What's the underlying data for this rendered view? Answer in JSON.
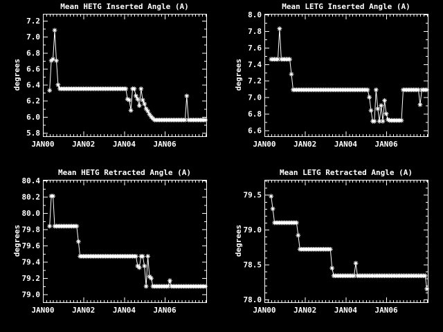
{
  "page": {
    "background": "#000000",
    "foreground": "#ffffff",
    "description_labels": {
      "x_axis_month_prefix": "JAN",
      "y_axis_label": "degrees"
    }
  },
  "chart_data": [
    {
      "type": "line",
      "title": "Mean HETG Inserted Angle (A)",
      "ylabel": "degrees",
      "marker": "asterisk",
      "line_color": "#ffffff",
      "xlim": [
        2000.0,
        2008.04
      ],
      "ylim": [
        5.757,
        7.286
      ],
      "xticks": [
        2000,
        2002,
        2004,
        2006
      ],
      "xtick_labels": [
        "JAN00",
        "JAN02",
        "JAN04",
        "JAN06"
      ],
      "xminor_step": 0.166667,
      "yticks": [
        5.8,
        6.0,
        6.2,
        6.4,
        6.6,
        6.8,
        7.0,
        7.2
      ],
      "ytick_labels": [
        "5.8",
        "6.0",
        "6.2",
        "6.4",
        "6.6",
        "6.8",
        "7.0",
        "7.2"
      ],
      "yminor_step": 0.1,
      "grid": false,
      "series": {
        "name": "mean-hetg-inserted-angle",
        "x_start": 2000.33,
        "x_step": 0.083333,
        "values": [
          6.33,
          6.7,
          6.72,
          7.08,
          6.7,
          6.4,
          6.35,
          6.35,
          6.35,
          6.35,
          6.35,
          6.35,
          6.35,
          6.35,
          6.35,
          6.35,
          6.35,
          6.35,
          6.35,
          6.35,
          6.35,
          6.35,
          6.35,
          6.35,
          6.35,
          6.35,
          6.35,
          6.35,
          6.35,
          6.35,
          6.35,
          6.35,
          6.35,
          6.35,
          6.35,
          6.35,
          6.35,
          6.35,
          6.35,
          6.35,
          6.35,
          6.35,
          6.35,
          6.35,
          6.35,
          6.35,
          6.22,
          6.21,
          6.08,
          6.35,
          6.35,
          6.26,
          6.22,
          6.14,
          6.35,
          6.21,
          6.16,
          6.1,
          6.07,
          6.03,
          6.0,
          5.98,
          5.96,
          5.96,
          5.96,
          5.96,
          5.96,
          5.96,
          5.96,
          5.96,
          5.96,
          5.96,
          5.96,
          5.96,
          5.96,
          5.96,
          5.96,
          5.96,
          5.96,
          5.96,
          5.96,
          6.26,
          5.96,
          5.96,
          5.96,
          5.96,
          5.96,
          5.96,
          5.96,
          5.96,
          5.96,
          5.96,
          5.96
        ]
      }
    },
    {
      "type": "line",
      "title": "Mean LETG Inserted Angle (A)",
      "ylabel": "degrees",
      "marker": "asterisk",
      "line_color": "#ffffff",
      "xlim": [
        2000.0,
        2008.04
      ],
      "ylim": [
        6.528,
        8.01
      ],
      "xticks": [
        2000,
        2002,
        2004,
        2006
      ],
      "xtick_labels": [
        "JAN00",
        "JAN02",
        "JAN04",
        "JAN06"
      ],
      "xminor_step": 0.166667,
      "yticks": [
        6.6,
        6.8,
        7.0,
        7.2,
        7.4,
        7.6,
        7.8,
        8.0
      ],
      "ytick_labels": [
        "6.6",
        "6.8",
        "7.0",
        "7.2",
        "7.4",
        "7.6",
        "7.8",
        "8.0"
      ],
      "yminor_step": 0.1,
      "grid": false,
      "series": {
        "name": "mean-letg-inserted-angle",
        "x_start": 2000.33,
        "x_step": 0.083333,
        "values": [
          7.46,
          7.46,
          7.46,
          7.46,
          7.46,
          7.83,
          7.46,
          7.46,
          7.46,
          7.46,
          7.46,
          7.46,
          7.28,
          7.09,
          7.09,
          7.09,
          7.09,
          7.09,
          7.09,
          7.09,
          7.09,
          7.09,
          7.09,
          7.09,
          7.09,
          7.09,
          7.09,
          7.09,
          7.09,
          7.09,
          7.09,
          7.09,
          7.09,
          7.09,
          7.09,
          7.09,
          7.09,
          7.09,
          7.09,
          7.09,
          7.09,
          7.09,
          7.09,
          7.09,
          7.09,
          7.09,
          7.09,
          7.09,
          7.09,
          7.09,
          7.09,
          7.09,
          7.09,
          7.09,
          7.09,
          7.09,
          7.09,
          7.09,
          7.0,
          6.84,
          6.71,
          6.71,
          7.09,
          6.86,
          6.71,
          6.9,
          6.71,
          6.96,
          6.8,
          6.73,
          6.72,
          6.72,
          6.72,
          6.72,
          6.72,
          6.72,
          6.72,
          6.72,
          7.09,
          7.09,
          7.09,
          7.09,
          7.09,
          7.09,
          7.09,
          7.09,
          7.09,
          7.09,
          6.91,
          7.09,
          7.09,
          7.09,
          7.09
        ]
      }
    },
    {
      "type": "line",
      "title": "Mean HETG Retracted Angle (A)",
      "ylabel": "degrees",
      "marker": "asterisk",
      "line_color": "#ffffff",
      "xlim": [
        2000.0,
        2008.04
      ],
      "ylim": [
        78.904,
        80.41
      ],
      "xticks": [
        2000,
        2002,
        2004,
        2006
      ],
      "xtick_labels": [
        "JAN00",
        "JAN02",
        "JAN04",
        "JAN06"
      ],
      "xminor_step": 0.166667,
      "yticks": [
        79.0,
        79.2,
        79.4,
        79.6,
        79.8,
        80.0,
        80.2,
        80.4
      ],
      "ytick_labels": [
        "79.0",
        "79.2",
        "79.4",
        "79.6",
        "79.8",
        "80.0",
        "80.2",
        "80.4"
      ],
      "yminor_step": 0.1,
      "grid": false,
      "series": {
        "name": "mean-hetg-retracted-angle",
        "x_start": 2000.33,
        "x_step": 0.083333,
        "values": [
          79.84,
          80.21,
          80.21,
          79.84,
          79.84,
          79.84,
          79.84,
          79.84,
          79.84,
          79.84,
          79.84,
          79.84,
          79.84,
          79.84,
          79.84,
          79.84,
          79.84,
          79.65,
          79.47,
          79.47,
          79.47,
          79.47,
          79.47,
          79.47,
          79.47,
          79.47,
          79.47,
          79.47,
          79.47,
          79.47,
          79.47,
          79.47,
          79.47,
          79.47,
          79.47,
          79.47,
          79.47,
          79.47,
          79.47,
          79.47,
          79.47,
          79.47,
          79.47,
          79.47,
          79.47,
          79.47,
          79.47,
          79.47,
          79.47,
          79.47,
          79.47,
          79.47,
          79.35,
          79.33,
          79.47,
          79.47,
          79.35,
          79.1,
          79.47,
          79.22,
          79.2,
          79.1,
          79.1,
          79.1,
          79.1,
          79.1,
          79.1,
          79.1,
          79.1,
          79.1,
          79.1,
          79.17,
          79.1,
          79.1,
          79.1,
          79.1,
          79.1,
          79.1,
          79.1,
          79.1,
          79.1,
          79.1,
          79.1,
          79.1,
          79.1,
          79.1,
          79.1,
          79.1,
          79.1,
          79.1,
          79.1,
          79.1,
          79.1
        ]
      }
    },
    {
      "type": "line",
      "title": "Mean LETG Retracted Angle (A)",
      "ylabel": "degrees",
      "marker": "asterisk",
      "line_color": "#ffffff",
      "xlim": [
        2000.0,
        2008.04
      ],
      "ylim": [
        77.96,
        79.715
      ],
      "xticks": [
        2000,
        2002,
        2004,
        2006
      ],
      "xtick_labels": [
        "JAN00",
        "JAN02",
        "JAN04",
        "JAN06"
      ],
      "xminor_step": 0.166667,
      "yticks": [
        78.0,
        78.5,
        79.0,
        79.5
      ],
      "ytick_labels": [
        "78.0",
        "78.5",
        "79.0",
        "79.5"
      ],
      "yminor_step": 0.1,
      "grid": false,
      "series": {
        "name": "mean-letg-retracted-angle",
        "x_start": 2000.33,
        "x_step": 0.083333,
        "values": [
          79.48,
          79.3,
          79.1,
          79.1,
          79.1,
          79.1,
          79.1,
          79.1,
          79.1,
          79.1,
          79.1,
          79.1,
          79.1,
          79.1,
          79.1,
          79.1,
          78.92,
          78.72,
          78.72,
          78.72,
          78.72,
          78.72,
          78.72,
          78.72,
          78.72,
          78.72,
          78.72,
          78.72,
          78.72,
          78.72,
          78.72,
          78.72,
          78.72,
          78.72,
          78.72,
          78.72,
          78.45,
          78.34,
          78.34,
          78.34,
          78.34,
          78.34,
          78.34,
          78.34,
          78.34,
          78.34,
          78.34,
          78.34,
          78.34,
          78.34,
          78.52,
          78.34,
          78.34,
          78.34,
          78.34,
          78.34,
          78.34,
          78.34,
          78.34,
          78.34,
          78.34,
          78.34,
          78.34,
          78.34,
          78.34,
          78.34,
          78.34,
          78.34,
          78.34,
          78.34,
          78.34,
          78.34,
          78.34,
          78.34,
          78.34,
          78.34,
          78.34,
          78.34,
          78.34,
          78.34,
          78.34,
          78.34,
          78.34,
          78.34,
          78.34,
          78.34,
          78.34,
          78.34,
          78.34,
          78.34,
          78.34,
          78.34,
          78.15
        ]
      }
    }
  ]
}
